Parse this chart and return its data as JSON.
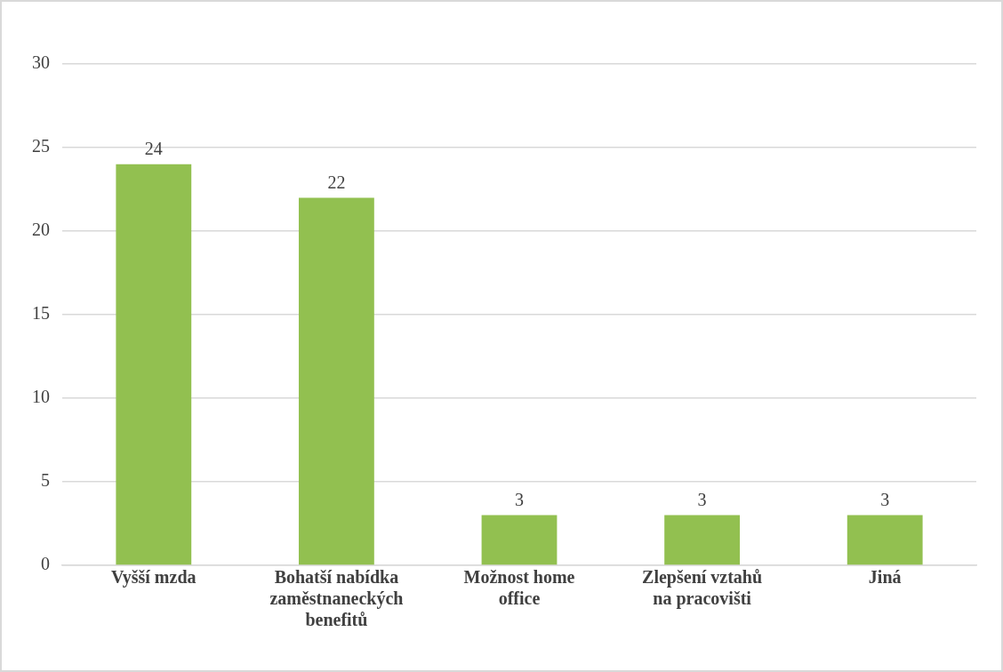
{
  "chart_data": {
    "type": "bar",
    "categories": [
      "Vyšší mzda",
      "Bohatší nabídka zaměstnaneckých benefitů",
      "Možnost home office",
      "Zlepšení vztahů na pracovišti",
      "Jiná"
    ],
    "values": [
      24,
      22,
      3,
      3,
      3
    ],
    "color": "#92c050",
    "ylim": [
      0,
      30
    ],
    "yticks": [
      0,
      5,
      10,
      15,
      20,
      25,
      30
    ],
    "grid": "y",
    "data_labels": true,
    "legend": false
  }
}
